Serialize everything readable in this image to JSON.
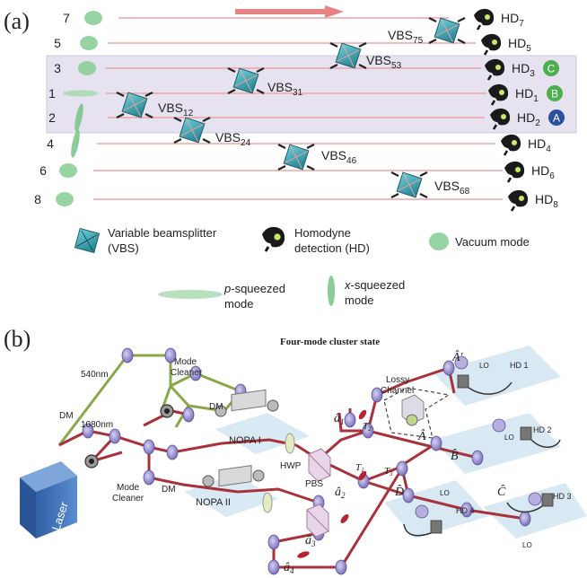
{
  "panel_a": {
    "label": "(a)",
    "modes": [
      {
        "num": "7",
        "hd": "HD",
        "hd_sub": "7",
        "marker": ""
      },
      {
        "num": "5",
        "hd": "HD",
        "hd_sub": "5",
        "marker": ""
      },
      {
        "num": "3",
        "hd": "HD",
        "hd_sub": "3",
        "marker": "C"
      },
      {
        "num": "1",
        "hd": "HD",
        "hd_sub": "1",
        "marker": "B"
      },
      {
        "num": "2",
        "hd": "HD",
        "hd_sub": "2",
        "marker": "A"
      },
      {
        "num": "4",
        "hd": "HD",
        "hd_sub": "4",
        "marker": ""
      },
      {
        "num": "6",
        "hd": "HD",
        "hd_sub": "6",
        "marker": ""
      },
      {
        "num": "8",
        "hd": "HD",
        "hd_sub": "8",
        "marker": ""
      }
    ],
    "vbs": [
      {
        "base": "VBS",
        "sub": "75"
      },
      {
        "base": "VBS",
        "sub": "53"
      },
      {
        "base": "VBS",
        "sub": "31"
      },
      {
        "base": "VBS",
        "sub": "12"
      },
      {
        "base": "VBS",
        "sub": "24"
      },
      {
        "base": "VBS",
        "sub": "46"
      },
      {
        "base": "VBS",
        "sub": "68"
      }
    ],
    "legend": {
      "vbs_line1": "Variable beamsplitter",
      "vbs_line2": "(VBS)",
      "hd_line1": "Homodyne",
      "hd_line2": "detection (HD)",
      "vacuum": "Vacuum mode",
      "p_sq_italic": "p",
      "p_sq_rest": "-squeezed",
      "p_sq_line2": "mode",
      "x_sq_italic": "x",
      "x_sq_rest": "-squeezed",
      "x_sq_line2": "mode"
    },
    "colors": {
      "beam": "#e9a5a5",
      "arrow": "#e06060",
      "vacuum": "#8ccf9a",
      "band": "#e6e2f0",
      "marker_green": "#4caf50",
      "marker_blue": "#2d4f9e"
    }
  },
  "panel_b": {
    "label": "(b)",
    "title": "Four-mode cluster state",
    "labels": {
      "wl540": "540nm",
      "wl1080": "1080nm",
      "mode_cleaner_top_1": "Mode",
      "mode_cleaner_top_2": "Cleaner",
      "mode_cleaner_bot_1": "Mode",
      "mode_cleaner_bot_2": "Cleaner",
      "dm1": "DM",
      "dm2": "DM",
      "dm3": "DM",
      "laser": "Laser",
      "nopa1": "NOPA I",
      "nopa2": "NOPA II",
      "hwp": "HWP",
      "pbs": "PBS",
      "lossy1": "Lossy",
      "lossy2": "Channel",
      "a1": "â",
      "a1_sub": "1",
      "a2": "â",
      "a2_sub": "2",
      "a3": "â",
      "a3_sub": "3",
      "a4": "â",
      "a4_sub": "4",
      "t1": "T",
      "t1_sub": "1",
      "t2": "T",
      "t2_sub": "2",
      "t3": "T",
      "t3_sub": "3",
      "A_prime": "Â′",
      "A_hat": "Â",
      "B_hat": "B̂",
      "C_hat": "Ĉ",
      "D_hat": "D̂",
      "lo": "LO",
      "hd1": "HD 1",
      "hd2": "HD 2",
      "hd3": "HD 3",
      "hd4": "HD 4"
    },
    "colors": {
      "red_beam": "#a8323c",
      "green_beam": "#8aa84a",
      "laser": "#3d6fb5",
      "plate": "#cfe3f0",
      "mirror": "#8f86c9"
    }
  }
}
